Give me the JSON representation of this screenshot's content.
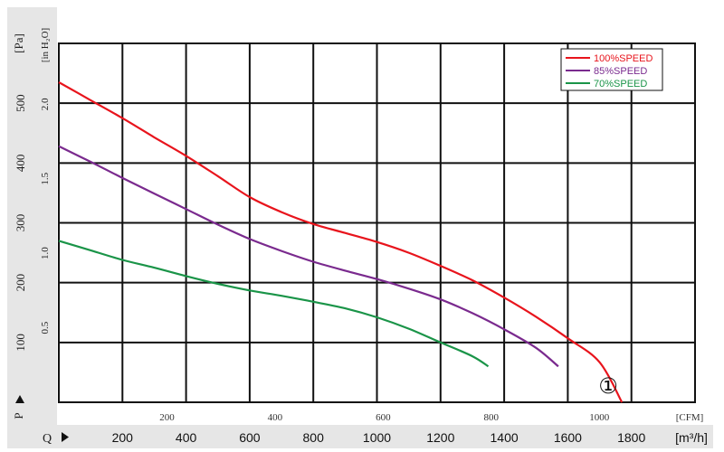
{
  "chart_data": {
    "type": "line",
    "title": "",
    "y_label_left": "P",
    "y_unit_pa": "[Pa]",
    "y_unit_inh2o": "[in H₂O]",
    "x_label": "Q",
    "x_unit_cfm": "[CFM]",
    "x_unit_m3h": "[m³/h]",
    "ylim_pa": [
      0,
      600
    ],
    "xlim_m3h": [
      0,
      2000
    ],
    "pa_ticks": [
      "100",
      "200",
      "300",
      "400",
      "500"
    ],
    "inh2o_ticks": [
      "0.5",
      "1.0",
      "1.5",
      "2.0"
    ],
    "cfm_ticks": [
      "200",
      "400",
      "600",
      "800",
      "1000"
    ],
    "m3h_ticks": [
      "200",
      "400",
      "600",
      "800",
      "1000",
      "1200",
      "1400",
      "1600",
      "1800"
    ],
    "grid": true,
    "legend_position": "top-right",
    "curve_marker": "①",
    "series": [
      {
        "name": "100%SPEED",
        "color": "#e8141c",
        "x": [
          0,
          100,
          200,
          300,
          400,
          500,
          600,
          700,
          800,
          900,
          1000,
          1100,
          1200,
          1300,
          1400,
          1500,
          1600,
          1700,
          1770
        ],
        "y": [
          535,
          505,
          475,
          443,
          412,
          378,
          343,
          318,
          298,
          283,
          268,
          250,
          228,
          204,
          175,
          143,
          107,
          67,
          0
        ]
      },
      {
        "name": "85%SPEED",
        "color": "#7a2a8e",
        "x": [
          0,
          100,
          200,
          300,
          400,
          500,
          600,
          700,
          800,
          900,
          1000,
          1100,
          1200,
          1300,
          1400,
          1500,
          1570
        ],
        "y": [
          428,
          402,
          375,
          349,
          323,
          297,
          273,
          253,
          235,
          220,
          206,
          190,
          172,
          149,
          122,
          91,
          60
        ]
      },
      {
        "name": "70%SPEED",
        "color": "#1a9448",
        "x": [
          0,
          100,
          200,
          300,
          400,
          500,
          600,
          700,
          800,
          900,
          1000,
          1100,
          1200,
          1300,
          1350
        ],
        "y": [
          270,
          254,
          238,
          225,
          211,
          198,
          187,
          178,
          168,
          157,
          142,
          123,
          100,
          77,
          60
        ]
      }
    ]
  }
}
